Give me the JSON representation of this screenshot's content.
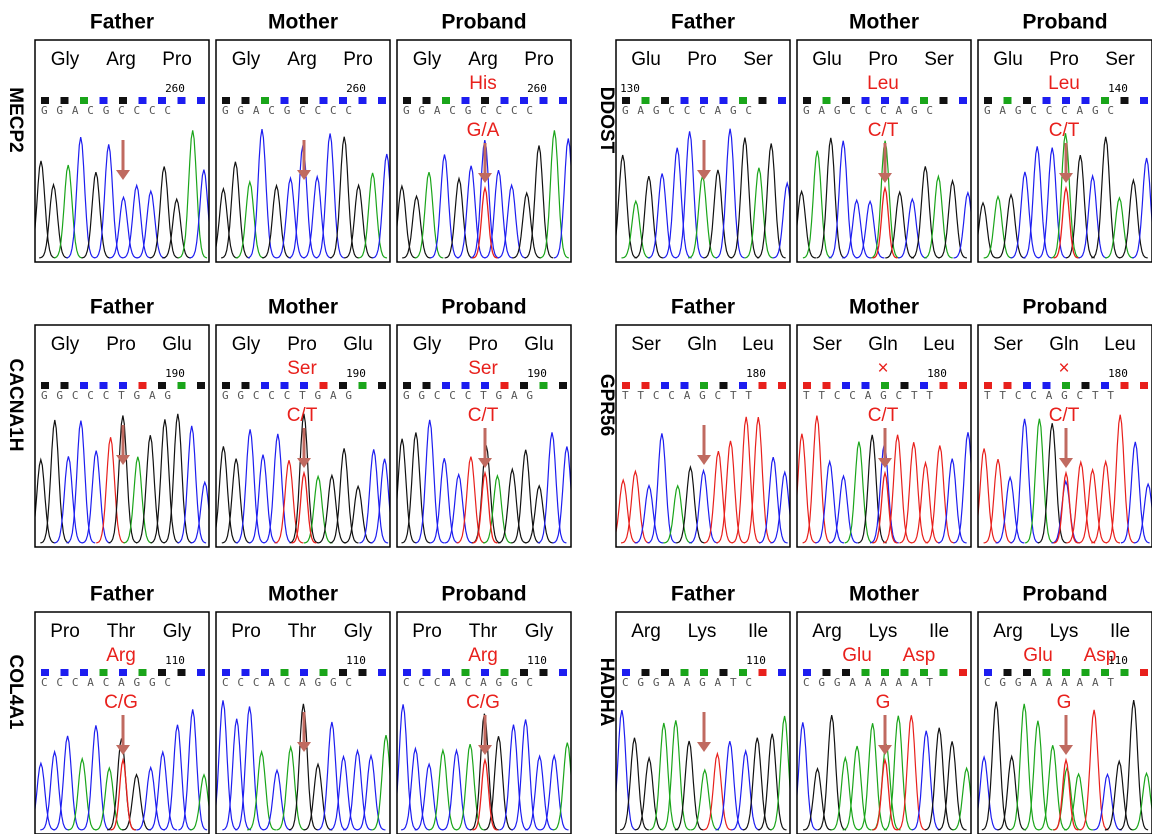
{
  "rows": [
    {
      "gene": "MECP2",
      "panels": [
        {
          "title": "Father",
          "codons": [
            "Gly",
            "Arg",
            "Pro"
          ],
          "position": "260",
          "sequence": "GGACGCCCC",
          "mutations": [],
          "change": null
        },
        {
          "title": "Mother",
          "codons": [
            "Gly",
            "Arg",
            "Pro"
          ],
          "position": "260",
          "sequence": "GGACGCCCC",
          "mutations": [],
          "change": null
        },
        {
          "title": "Proband",
          "codons": [
            "Gly",
            "Arg",
            "Pro"
          ],
          "position": "260",
          "sequence": "GGACGCCCC",
          "mutations": [
            "His"
          ],
          "change": "G/A"
        }
      ]
    },
    {
      "gene": "DDOST",
      "panels": [
        {
          "title": "Father",
          "codons": [
            "Glu",
            "Pro",
            "Ser"
          ],
          "position": "130",
          "sequence": "GAGCCCAGC",
          "mutations": [],
          "change": null
        },
        {
          "title": "Mother",
          "codons": [
            "Glu",
            "Pro",
            "Ser"
          ],
          "position": null,
          "sequence": "GAGCCCAGC",
          "mutations": [
            "Leu"
          ],
          "change": "C/T"
        },
        {
          "title": "Proband",
          "codons": [
            "Glu",
            "Pro",
            "Ser"
          ],
          "position": "140",
          "sequence": "GAGCCCAGC",
          "mutations": [
            "Leu"
          ],
          "change": "C/T"
        }
      ]
    },
    {
      "gene": "CACNA1H",
      "panels": [
        {
          "title": "Father",
          "codons": [
            "Gly",
            "Pro",
            "Glu"
          ],
          "position": "190",
          "sequence": "GGCCCTGAG",
          "mutations": [],
          "change": null
        },
        {
          "title": "Mother",
          "codons": [
            "Gly",
            "Pro",
            "Glu"
          ],
          "position": "190",
          "sequence": "GGCCCTGAG",
          "mutations": [
            "Ser"
          ],
          "change": "C/T"
        },
        {
          "title": "Proband",
          "codons": [
            "Gly",
            "Pro",
            "Glu"
          ],
          "position": "190",
          "sequence": "GGCCCTGAG",
          "mutations": [
            "Ser"
          ],
          "change": "C/T"
        }
      ]
    },
    {
      "gene": "GPR56",
      "panels": [
        {
          "title": "Father",
          "codons": [
            "Ser",
            "Gln",
            "Leu"
          ],
          "position": "180",
          "sequence": "TTCCAGCTT",
          "mutations": [],
          "change": null
        },
        {
          "title": "Mother",
          "codons": [
            "Ser",
            "Gln",
            "Leu"
          ],
          "position": "180",
          "sequence": "TTCCAGCTT",
          "mutations": [
            "×"
          ],
          "change": "C/T"
        },
        {
          "title": "Proband",
          "codons": [
            "Ser",
            "Gln",
            "Leu"
          ],
          "position": "180",
          "sequence": "TTCCAGCTT",
          "mutations": [
            "×"
          ],
          "change": "C/T"
        }
      ]
    },
    {
      "gene": "COL4A1",
      "panels": [
        {
          "title": "Father",
          "codons": [
            "Pro",
            "Thr",
            "Gly"
          ],
          "position": "110",
          "sequence": "CCCACAGGC",
          "mutations": [
            "Arg"
          ],
          "change": "C/G"
        },
        {
          "title": "Mother",
          "codons": [
            "Pro",
            "Thr",
            "Gly"
          ],
          "position": "110",
          "sequence": "CCCACAGGC",
          "mutations": [],
          "change": null
        },
        {
          "title": "Proband",
          "codons": [
            "Pro",
            "Thr",
            "Gly"
          ],
          "position": "110",
          "sequence": "CCCACAGGC",
          "mutations": [
            "Arg"
          ],
          "change": "C/G"
        }
      ]
    },
    {
      "gene": "HADHA",
      "panels": [
        {
          "title": "Father",
          "codons": [
            "Arg",
            "Lys",
            "Ile"
          ],
          "position": "110",
          "sequence": "CGGAAGATC",
          "mutations": [],
          "change": null
        },
        {
          "title": "Mother",
          "codons": [
            "Arg",
            "Lys",
            "Ile"
          ],
          "position": null,
          "sequence": "CGGAAAAAT",
          "mutations": [
            "Glu",
            "Asp"
          ],
          "change": "G"
        },
        {
          "title": "Proband",
          "codons": [
            "Arg",
            "Lys",
            "Ile"
          ],
          "position": "110",
          "sequence": "CGGAAAAAT",
          "mutations": [
            "Glu",
            "Asp"
          ],
          "change": "G"
        }
      ]
    }
  ]
}
